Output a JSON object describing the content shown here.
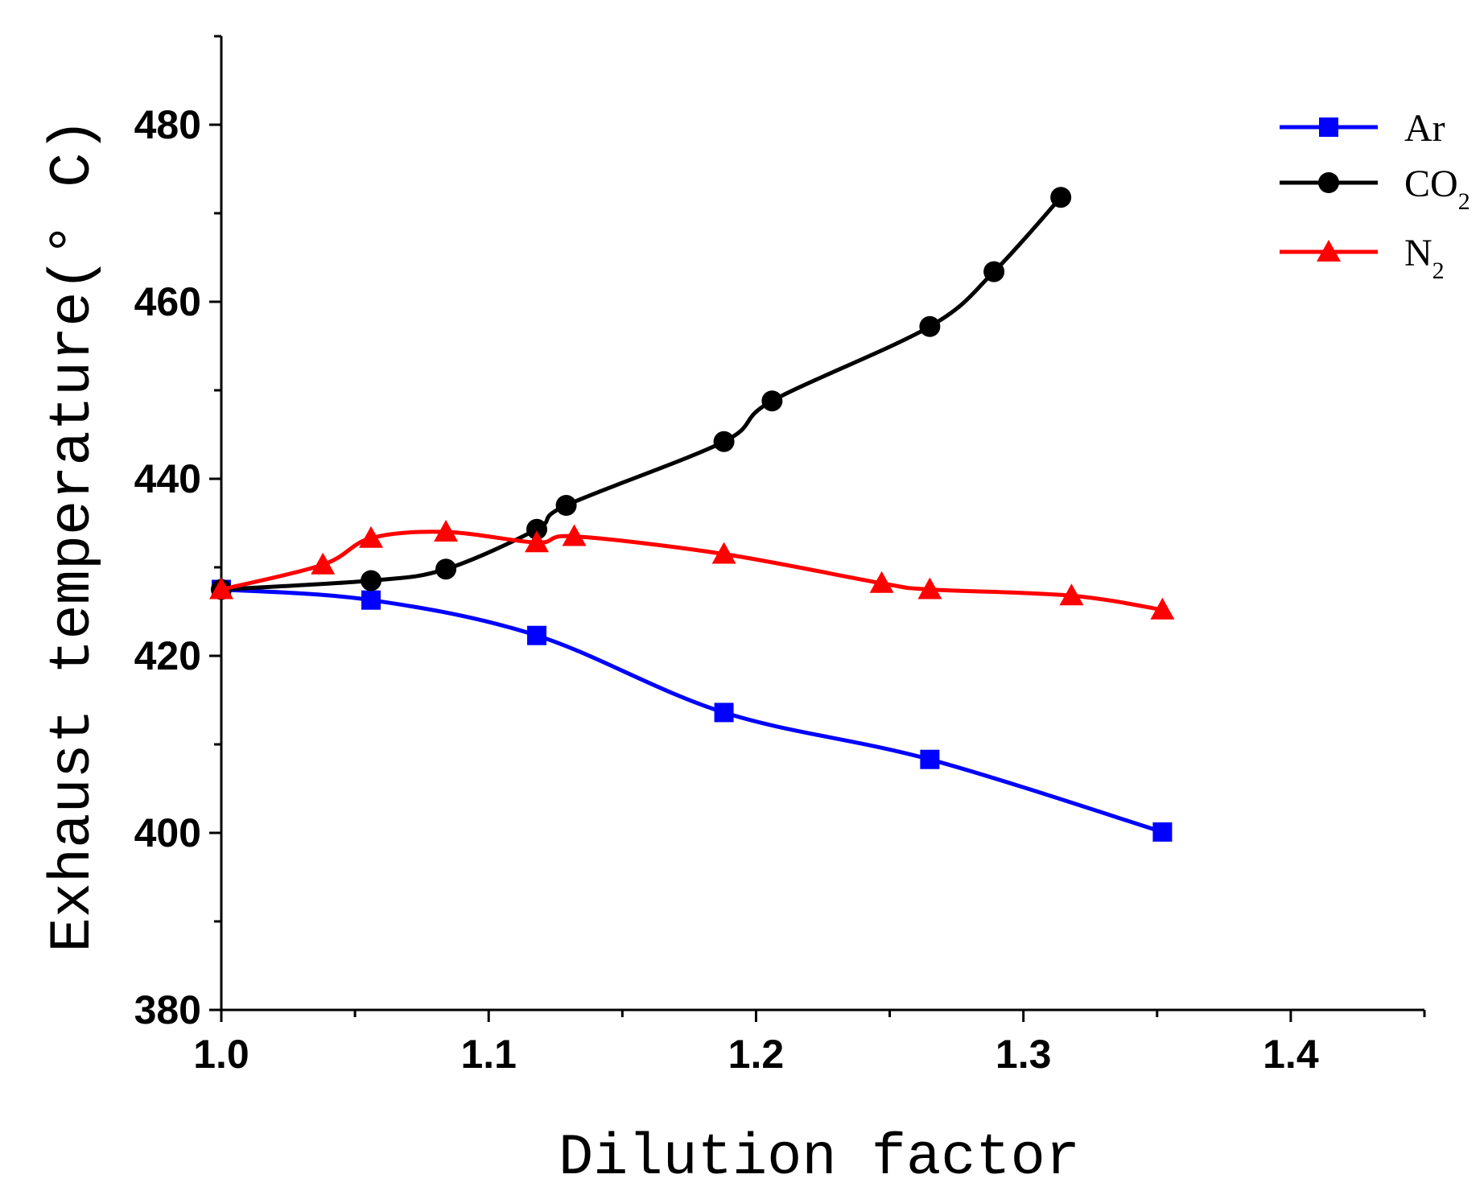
{
  "chart_data": {
    "type": "line",
    "xlabel": "Dilution factor",
    "ylabel": "Exhaust temperature(° C)",
    "xlim": [
      1.0,
      1.45
    ],
    "ylim": [
      380,
      490
    ],
    "x_ticks": [
      1.0,
      1.1,
      1.2,
      1.3,
      1.4
    ],
    "x_tick_labels": [
      "1.0",
      "1.1",
      "1.2",
      "1.3",
      "1.4"
    ],
    "x_minor_ticks": [
      1.05,
      1.15,
      1.25,
      1.35,
      1.45
    ],
    "y_ticks": [
      380,
      400,
      420,
      440,
      460,
      480
    ],
    "y_tick_labels": [
      "380",
      "400",
      "420",
      "440",
      "460",
      "480"
    ],
    "y_minor_ticks": [
      390,
      410,
      430,
      450,
      470,
      490
    ],
    "legend_position": "top-right",
    "series": [
      {
        "name": "Ar",
        "legend_main": "Ar",
        "legend_sub": "",
        "color": "#0000ff",
        "marker": "square",
        "x": [
          1.0,
          1.056,
          1.118,
          1.188,
          1.265,
          1.352
        ],
        "y": [
          427.5,
          426.3,
          422.3,
          413.6,
          408.3,
          400.1
        ]
      },
      {
        "name": "CO2",
        "legend_main": "CO",
        "legend_sub": "2",
        "color": "#000000",
        "marker": "circle",
        "x": [
          1.0,
          1.056,
          1.084,
          1.118,
          1.129,
          1.188,
          1.206,
          1.265,
          1.289,
          1.314
        ],
        "y": [
          427.5,
          428.5,
          429.8,
          434.3,
          437.0,
          444.2,
          448.8,
          457.2,
          463.4,
          471.8
        ]
      },
      {
        "name": "N2",
        "legend_main": "N",
        "legend_sub": "2",
        "color": "#ff0000",
        "marker": "triangle",
        "x": [
          1.0,
          1.038,
          1.056,
          1.084,
          1.118,
          1.132,
          1.188,
          1.247,
          1.265,
          1.318,
          1.352
        ],
        "y": [
          427.5,
          430.3,
          433.3,
          434.0,
          432.8,
          433.5,
          431.5,
          428.2,
          427.5,
          426.8,
          425.2
        ]
      }
    ]
  }
}
